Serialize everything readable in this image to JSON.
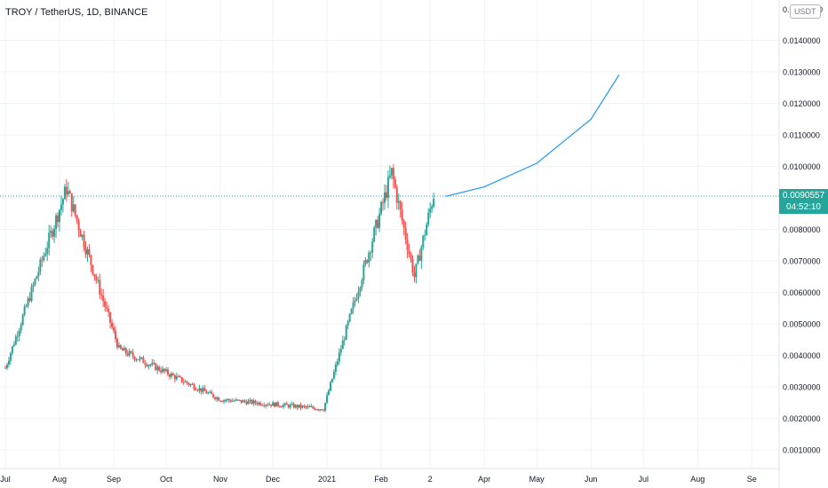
{
  "title": "TROY / TetherUS, 1D, BINANCE",
  "unit_badge": "USDT",
  "top_label": "0.",
  "top_label_suffix": "0",
  "price_tag": {
    "price": "0.0090557",
    "countdown": "04:52:10"
  },
  "colors": {
    "up": "#26a69a",
    "down": "#ef5350",
    "projection": "#2196f3",
    "last_price_line": "#26a69a",
    "grid": "#f0f3fa"
  },
  "chart_data": {
    "type": "candlestick",
    "y_axis_ticks": [
      "0.0140000",
      "0.0130000",
      "0.0120000",
      "0.0110000",
      "0.0100000",
      "0.0090000",
      "0.0080000",
      "0.0070000",
      "0.0060000",
      "0.0050000",
      "0.0040000",
      "0.0030000",
      "0.0020000",
      "0.0010000"
    ],
    "x_axis_ticks": [
      "Jul",
      "Aug",
      "Sep",
      "Oct",
      "Nov",
      "Dec",
      "2021",
      "Feb",
      "2",
      "Apr",
      "May",
      "Jun",
      "Jul",
      "Aug",
      "Se"
    ],
    "ylim": [
      0.00045,
      0.01512
    ],
    "last_price": 0.0090557,
    "key_points": [
      {
        "date": "2020-07-01",
        "price": 0.0036
      },
      {
        "date": "2020-08-05",
        "price": 0.0093
      },
      {
        "date": "2020-09-04",
        "price": 0.0042
      },
      {
        "date": "2020-11-01",
        "price": 0.0026
      },
      {
        "date": "2020-12-30",
        "price": 0.0023
      },
      {
        "date": "2021-02-07",
        "price": 0.0098
      },
      {
        "date": "2021-02-20",
        "price": 0.0065
      },
      {
        "date": "2021-03-03",
        "price": 0.0091
      }
    ],
    "projection": [
      {
        "date": "2021-03-10",
        "price": 0.00905
      },
      {
        "date": "2021-04-01",
        "price": 0.00935
      },
      {
        "date": "2021-05-01",
        "price": 0.0101
      },
      {
        "date": "2021-06-01",
        "price": 0.0115
      },
      {
        "date": "2021-06-17",
        "price": 0.0129
      }
    ]
  }
}
